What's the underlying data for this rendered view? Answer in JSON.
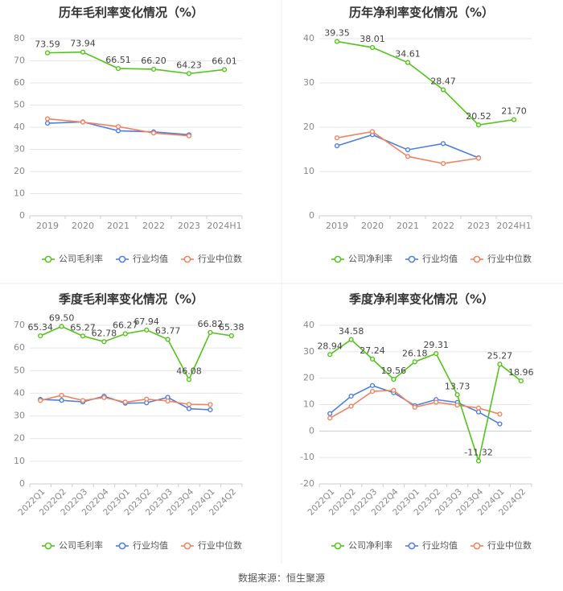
{
  "source": "数据来源：恒生聚源",
  "colors": {
    "company": "#52c41a",
    "industry_avg": "#4e7ee0",
    "industry_median": "#f2835e",
    "grid": "#e6e6e6",
    "axis_text": "#888888",
    "title": "#333333"
  },
  "chart_data": [
    {
      "type": "line",
      "title": "历年毛利率变化情况（%）",
      "categories": [
        "2019",
        "2020",
        "2021",
        "2022",
        "2023",
        "2024H1"
      ],
      "ylim": [
        0,
        80
      ],
      "yticks": [
        "0",
        "10",
        "20",
        "30",
        "40",
        "50",
        "60",
        "70",
        "80"
      ],
      "series": [
        {
          "name": "公司毛利率",
          "values": [
            73.59,
            73.94,
            66.51,
            66.2,
            64.23,
            66.01
          ],
          "labels": [
            "73.59",
            "73.94",
            "66.51",
            "66.20",
            "64.23",
            "66.01"
          ]
        },
        {
          "name": "行业均值",
          "values": [
            41.8,
            42.4,
            38.4,
            37.9,
            36.6,
            null
          ]
        },
        {
          "name": "行业中位数",
          "values": [
            43.8,
            42.3,
            40.3,
            37.4,
            36.1,
            null
          ]
        }
      ]
    },
    {
      "type": "line",
      "title": "历年净利率变化情况（%）",
      "categories": [
        "2019",
        "2020",
        "2021",
        "2022",
        "2023",
        "2024H1"
      ],
      "ylim": [
        0,
        40
      ],
      "yticks": [
        "0",
        "10",
        "20",
        "30",
        "40"
      ],
      "series": [
        {
          "name": "公司净利率",
          "values": [
            39.35,
            38.01,
            34.61,
            28.47,
            20.52,
            21.7
          ],
          "labels": [
            "39.35",
            "38.01",
            "34.61",
            "28.47",
            "20.52",
            "21.70"
          ]
        },
        {
          "name": "行业均值",
          "values": [
            15.8,
            18.3,
            14.9,
            16.3,
            13.1,
            null
          ]
        },
        {
          "name": "行业中位数",
          "values": [
            17.6,
            19.0,
            13.4,
            11.8,
            13.0,
            null
          ]
        }
      ]
    },
    {
      "type": "line",
      "title": "季度毛利率变化情况（%）",
      "categories": [
        "2022Q1",
        "2022Q2",
        "2022Q3",
        "2022Q4",
        "2023Q1",
        "2023Q2",
        "2023Q3",
        "2023Q4",
        "2024Q1",
        "2024Q2"
      ],
      "ylim": [
        0,
        70
      ],
      "yticks": [
        "0",
        "10",
        "20",
        "30",
        "40",
        "50",
        "60",
        "70"
      ],
      "rotate_x": true,
      "series": [
        {
          "name": "公司毛利率",
          "values": [
            65.34,
            69.5,
            65.27,
            62.78,
            66.27,
            67.94,
            63.77,
            46.08,
            66.82,
            65.38
          ],
          "labels": [
            "65.34",
            "69.50",
            "65.27",
            "62.78",
            "66.27",
            "67.94",
            "63.77",
            "46.08",
            "66.82",
            "65.38"
          ]
        },
        {
          "name": "行业均值",
          "values": [
            37.3,
            36.9,
            36.2,
            38.7,
            35.6,
            35.8,
            38.2,
            33.2,
            32.7,
            null
          ]
        },
        {
          "name": "行业中位数",
          "values": [
            36.8,
            39.1,
            36.8,
            38.1,
            36.1,
            37.4,
            36.6,
            35.1,
            35.0,
            null
          ]
        }
      ]
    },
    {
      "type": "line",
      "title": "季度净利率变化情况（%）",
      "categories": [
        "2022Q1",
        "2022Q2",
        "2022Q3",
        "2022Q4",
        "2023Q1",
        "2023Q2",
        "2023Q3",
        "2023Q4",
        "2024Q1",
        "2024Q2"
      ],
      "ylim": [
        -20,
        40
      ],
      "yticks": [
        "-20",
        "-10",
        "0",
        "10",
        "20",
        "30",
        "40"
      ],
      "rotate_x": true,
      "series": [
        {
          "name": "公司净利率",
          "values": [
            28.94,
            34.58,
            27.24,
            19.56,
            26.18,
            29.31,
            13.73,
            -11.32,
            25.27,
            18.96
          ],
          "labels": [
            "28.94",
            "34.58",
            "27.24",
            "19.56",
            "26.18",
            "29.31",
            "13.73",
            "-11.32",
            "25.27",
            "18.96"
          ]
        },
        {
          "name": "行业均值",
          "values": [
            6.6,
            13.2,
            17.2,
            14.5,
            9.6,
            11.9,
            10.8,
            7.2,
            2.7,
            null
          ]
        },
        {
          "name": "行业中位数",
          "values": [
            4.9,
            9.4,
            15.0,
            15.4,
            9.0,
            10.9,
            9.8,
            8.7,
            6.4,
            null
          ]
        }
      ]
    }
  ]
}
